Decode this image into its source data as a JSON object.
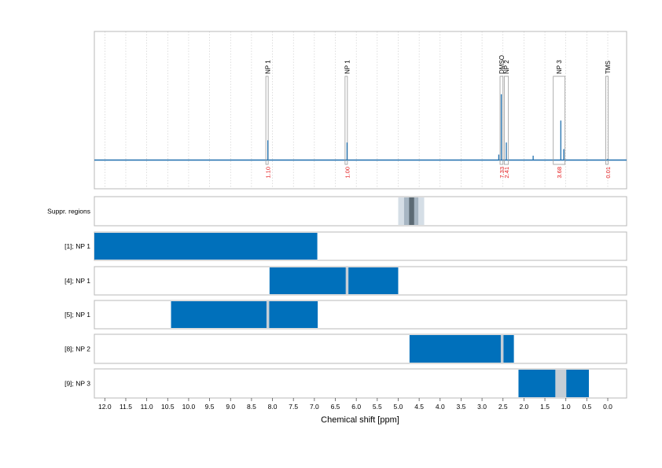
{
  "chart_data": {
    "type": "nmr-spectrum-with-region-bars",
    "xlabel": "Chemical shift [ppm]",
    "xlim": [
      12.25,
      -0.45
    ],
    "xreversed": true,
    "xticks": [
      12.0,
      11.5,
      11.0,
      10.5,
      10.0,
      9.5,
      9.0,
      8.5,
      8.0,
      7.5,
      7.0,
      6.5,
      6.0,
      5.5,
      5.0,
      4.5,
      4.0,
      3.5,
      3.0,
      2.5,
      2.0,
      1.5,
      1.0,
      0.5,
      0.0
    ],
    "xtick_labels": [
      "12.0",
      "11.5",
      "11.0",
      "10.5",
      "10.0",
      "9.5",
      "9.0",
      "8.5",
      "8.0",
      "7.5",
      "7.0",
      "6.5",
      "6.0",
      "5.5",
      "5.0",
      "4.5",
      "4.0",
      "3.5",
      "3.0",
      "2.5",
      "2.0",
      "1.5",
      "1.0",
      "0.5",
      "0.0"
    ],
    "grid": "vertical dotted",
    "colors": {
      "spectrum": "#1f6fae",
      "bar": "#0070bb",
      "gap": "#c5ced6",
      "integral_text": "#e41a1c",
      "frame": "#b8b8b8",
      "supp_light": "#d5dee6",
      "supp_mid": "#a7b6c3",
      "supp_dark": "#5c6a74"
    },
    "spectrum": {
      "peaks": [
        {
          "ppm": 8.11,
          "label": "NP 1",
          "integral": "1.10",
          "box": [
            8.13,
            8.09
          ],
          "rel_height": 0.18
        },
        {
          "ppm": 6.22,
          "label": "NP 1",
          "integral": "1.00",
          "box": [
            6.24,
            6.2
          ],
          "rel_height": 0.16
        },
        {
          "ppm": 2.54,
          "label": "DMSO",
          "integral": "7.33",
          "box": [
            2.57,
            2.5
          ],
          "rel_height": 0.6
        },
        {
          "ppm": 2.42,
          "label": "NP 2",
          "integral": "2.41",
          "box": [
            2.47,
            2.37
          ],
          "rel_height": 0.16
        },
        {
          "ppm": 1.12,
          "label": "NP 3",
          "integral": "3.68",
          "box": [
            1.3,
            1.02
          ],
          "rel_height": 0.36
        },
        {
          "ppm": 0.0,
          "label": "TMS",
          "integral": "0.01",
          "box": [
            0.02,
            -0.02
          ],
          "rel_height": 0.01
        }
      ],
      "minor_peaks": [
        {
          "ppm": 1.78,
          "rel_height": 0.04
        },
        {
          "ppm": 1.05,
          "rel_height": 0.1
        },
        {
          "ppm": 2.6,
          "rel_height": 0.05
        }
      ]
    },
    "rows": [
      {
        "label": "Suppr. regions",
        "kind": "suppression",
        "bands": [
          {
            "from": 5.0,
            "to": 4.38,
            "shade": "light"
          },
          {
            "from": 4.86,
            "to": 4.52,
            "shade": "mid"
          },
          {
            "from": 4.74,
            "to": 4.62,
            "shade": "dark"
          }
        ]
      },
      {
        "label": "[1]; NP 1",
        "range": [
          12.25,
          6.93
        ],
        "gaps": []
      },
      {
        "label": "[4]; NP 1",
        "range": [
          8.07,
          5.0
        ],
        "gaps": [
          6.22
        ]
      },
      {
        "label": "[5]; NP 1",
        "range": [
          10.42,
          6.92
        ],
        "gaps": [
          8.11
        ]
      },
      {
        "label": "[8]; NP 2",
        "range": [
          4.73,
          2.24
        ],
        "gaps": [
          2.52
        ]
      },
      {
        "label": "[9]; NP 3",
        "range": [
          2.13,
          0.45
        ],
        "gaps": [
          1.12
        ]
      }
    ]
  }
}
